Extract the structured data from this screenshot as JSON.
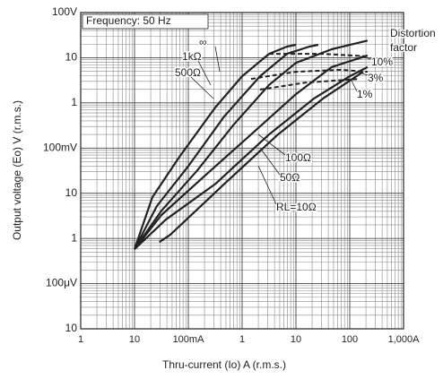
{
  "chart_data": {
    "type": "line",
    "annotation": "Frequency: 50 Hz",
    "distortion_label": [
      "Distortion",
      "factor"
    ],
    "x_label": "Thru-current (Io) A (r.m.s.)",
    "y_label": "Output voltage (Eo) V (r.m.s.)",
    "log_x": true,
    "log_y": true,
    "grid": true,
    "minor_grid": true,
    "xlim": [
      0.001,
      1000
    ],
    "ylim": [
      1e-05,
      100
    ],
    "xticks": [
      {
        "value": 0.001,
        "label": "1"
      },
      {
        "value": 0.01,
        "label": "10"
      },
      {
        "value": 0.1,
        "label": "100mA"
      },
      1,
      10,
      100,
      {
        "value": 1000,
        "label": "1,000A"
      }
    ],
    "yticks": [
      {
        "value": 100,
        "label": "100V"
      },
      10,
      1,
      {
        "value": 0.1,
        "label": "100mV"
      },
      {
        "value": 0.01,
        "label": "10"
      },
      {
        "value": 0.001,
        "label": "1"
      },
      {
        "value": 0.0001,
        "label": "100μV"
      },
      {
        "value": 1e-05,
        "label": "10"
      }
    ],
    "series": [
      {
        "name": "∞",
        "color": "#222222",
        "x": [
          0.01,
          0.0215,
          0.068,
          0.316,
          1,
          3.16,
          6.8,
          10
        ],
        "values": [
          0.00058,
          0.0082,
          0.064,
          0.79,
          3.9,
          12.2,
          17.6,
          19.3
        ]
      },
      {
        "name": "1kΩ",
        "color": "#222222",
        "x": [
          0.01,
          0.026,
          0.1,
          0.464,
          2.15,
          6.8,
          17.8,
          26
        ],
        "values": [
          0.00058,
          0.0052,
          0.04,
          0.5,
          3.9,
          12.2,
          17.6,
          19.3
        ]
      },
      {
        "name": "500Ω",
        "color": "#222222",
        "x": [
          0.01,
          0.0316,
          0.147,
          0.68,
          3.16,
          10,
          46,
          215
        ],
        "values": [
          0.00058,
          0.0041,
          0.032,
          0.32,
          2.5,
          7.7,
          15.4,
          24
        ]
      },
      {
        "name": "100Ω",
        "color": "#222222",
        "x": [
          0.01,
          0.0316,
          0.215,
          1.47,
          10,
          46,
          215
        ],
        "values": [
          0.00058,
          0.0033,
          0.026,
          0.2,
          1.56,
          6.2,
          11.2
        ]
      },
      {
        "name": "50Ω",
        "color": "#222222",
        "x": [
          0.01,
          0.038,
          0.316,
          3.16,
          21.5,
          100,
          215
        ],
        "values": [
          0.00058,
          0.0026,
          0.016,
          0.2,
          1.24,
          3.9,
          6.2
        ]
      },
      {
        "name": "RL=10Ω",
        "color": "#222222",
        "x": [
          0.029,
          0.046,
          0.464,
          4.64,
          31.6,
          178
        ],
        "values": [
          0.00083,
          0.0012,
          0.016,
          0.2,
          1.24,
          4.9
        ]
      },
      {
        "name": "10%",
        "color": "#222222",
        "dashed": true,
        "x": [
          3.16,
          31.6,
          215
        ],
        "values": [
          12.2,
          12.2,
          10.7
        ]
      },
      {
        "name": "3%",
        "color": "#222222",
        "dashed": true,
        "x": [
          1.47,
          10,
          68,
          215
        ],
        "values": [
          3.4,
          4.9,
          5.4,
          4.9
        ]
      },
      {
        "name": "1%",
        "color": "#222222",
        "dashed": true,
        "x": [
          2.15,
          14.7,
          147
        ],
        "values": [
          1.97,
          2.8,
          3.4
        ]
      }
    ]
  }
}
